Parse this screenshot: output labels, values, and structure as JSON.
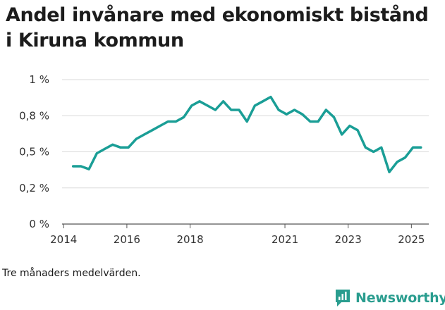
{
  "chart_data": {
    "type": "line",
    "title": "Andel invånare med ekonomiskt bistånd i Kiruna kommun",
    "xlabel": "",
    "ylabel": "",
    "note": "Tre månaders medelvärden.",
    "y_ticks": [
      {
        "value": 0,
        "label": "0 %"
      },
      {
        "value": 0.25,
        "label": "0,2 %"
      },
      {
        "value": 0.5,
        "label": "0,5 %"
      },
      {
        "value": 0.75,
        "label": "0,8 %"
      },
      {
        "value": 1.0,
        "label": "1 %"
      }
    ],
    "x_ticks": [
      {
        "value": 2014.0,
        "label": "2014"
      },
      {
        "value": 2016.0,
        "label": "2016"
      },
      {
        "value": 2018.0,
        "label": "2018"
      },
      {
        "value": 2021.0,
        "label": "2021"
      },
      {
        "value": 2023.0,
        "label": "2023"
      },
      {
        "value": 2025.0,
        "label": "2025"
      }
    ],
    "xlim": [
      2013.95,
      2025.55
    ],
    "ylim": [
      0,
      1.0
    ],
    "grid": true,
    "line_color": "#1a9e96",
    "series": [
      {
        "x": [
          2014.3,
          2014.55,
          2014.8,
          2015.05,
          2015.3,
          2015.55,
          2015.8,
          2016.05,
          2016.3,
          2016.55,
          2016.8,
          2017.05,
          2017.3,
          2017.55,
          2017.8,
          2018.05,
          2018.3,
          2018.55,
          2018.8,
          2019.05,
          2019.3,
          2019.55,
          2019.8,
          2020.05,
          2020.3,
          2020.55,
          2020.8,
          2021.05,
          2021.3,
          2021.55,
          2021.8,
          2022.05,
          2022.3,
          2022.55,
          2022.8,
          2023.05,
          2023.3,
          2023.55,
          2023.8,
          2024.05,
          2024.3,
          2024.55,
          2024.8,
          2025.05,
          2025.3
        ],
        "values": [
          0.4,
          0.4,
          0.38,
          0.49,
          0.52,
          0.55,
          0.53,
          0.53,
          0.59,
          0.62,
          0.65,
          0.68,
          0.71,
          0.71,
          0.74,
          0.82,
          0.85,
          0.82,
          0.79,
          0.85,
          0.79,
          0.79,
          0.71,
          0.82,
          0.85,
          0.88,
          0.79,
          0.76,
          0.79,
          0.76,
          0.71,
          0.71,
          0.79,
          0.74,
          0.62,
          0.68,
          0.65,
          0.53,
          0.5,
          0.53,
          0.36,
          0.43,
          0.46,
          0.53,
          0.53
        ]
      }
    ]
  },
  "brand": {
    "name": "Newsworthy",
    "icon": "newsworthy-logo-icon",
    "color": "#2a9d8f"
  }
}
